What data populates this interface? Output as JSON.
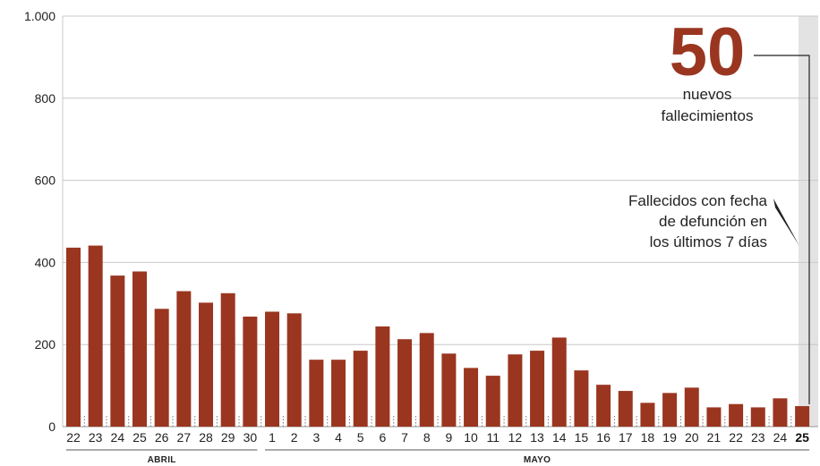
{
  "chart_data": {
    "type": "bar",
    "categories": [
      "22",
      "23",
      "24",
      "25",
      "26",
      "27",
      "28",
      "29",
      "30",
      "1",
      "2",
      "3",
      "4",
      "5",
      "6",
      "7",
      "8",
      "9",
      "10",
      "11",
      "12",
      "13",
      "14",
      "15",
      "16",
      "17",
      "18",
      "19",
      "20",
      "21",
      "22",
      "23",
      "24",
      "25"
    ],
    "values": [
      436,
      441,
      368,
      378,
      287,
      330,
      302,
      325,
      268,
      280,
      276,
      163,
      163,
      185,
      244,
      213,
      228,
      178,
      143,
      124,
      176,
      185,
      217,
      137,
      102,
      87,
      58,
      82,
      95,
      47,
      55,
      47,
      69,
      50
    ],
    "yticks": [
      0,
      200,
      400,
      600,
      800,
      1000
    ],
    "ytick_labels": [
      "0",
      "200",
      "400",
      "600",
      "800",
      "1.000"
    ],
    "ylim": [
      0,
      1000
    ],
    "months": [
      {
        "name": "ABRIL",
        "start_index": 0,
        "end_index": 8
      },
      {
        "name": "MAYO",
        "start_index": 9,
        "end_index": 33
      }
    ],
    "bar_color": "#9a3620",
    "highlight_index": 33,
    "callout": {
      "number": "50",
      "line1": "nuevos",
      "line2": "fallecimientos"
    },
    "note": {
      "line1": "Fallecidos con fecha",
      "line2": "de defunción en",
      "line3": "los últimos 7 días"
    },
    "grid": true
  }
}
